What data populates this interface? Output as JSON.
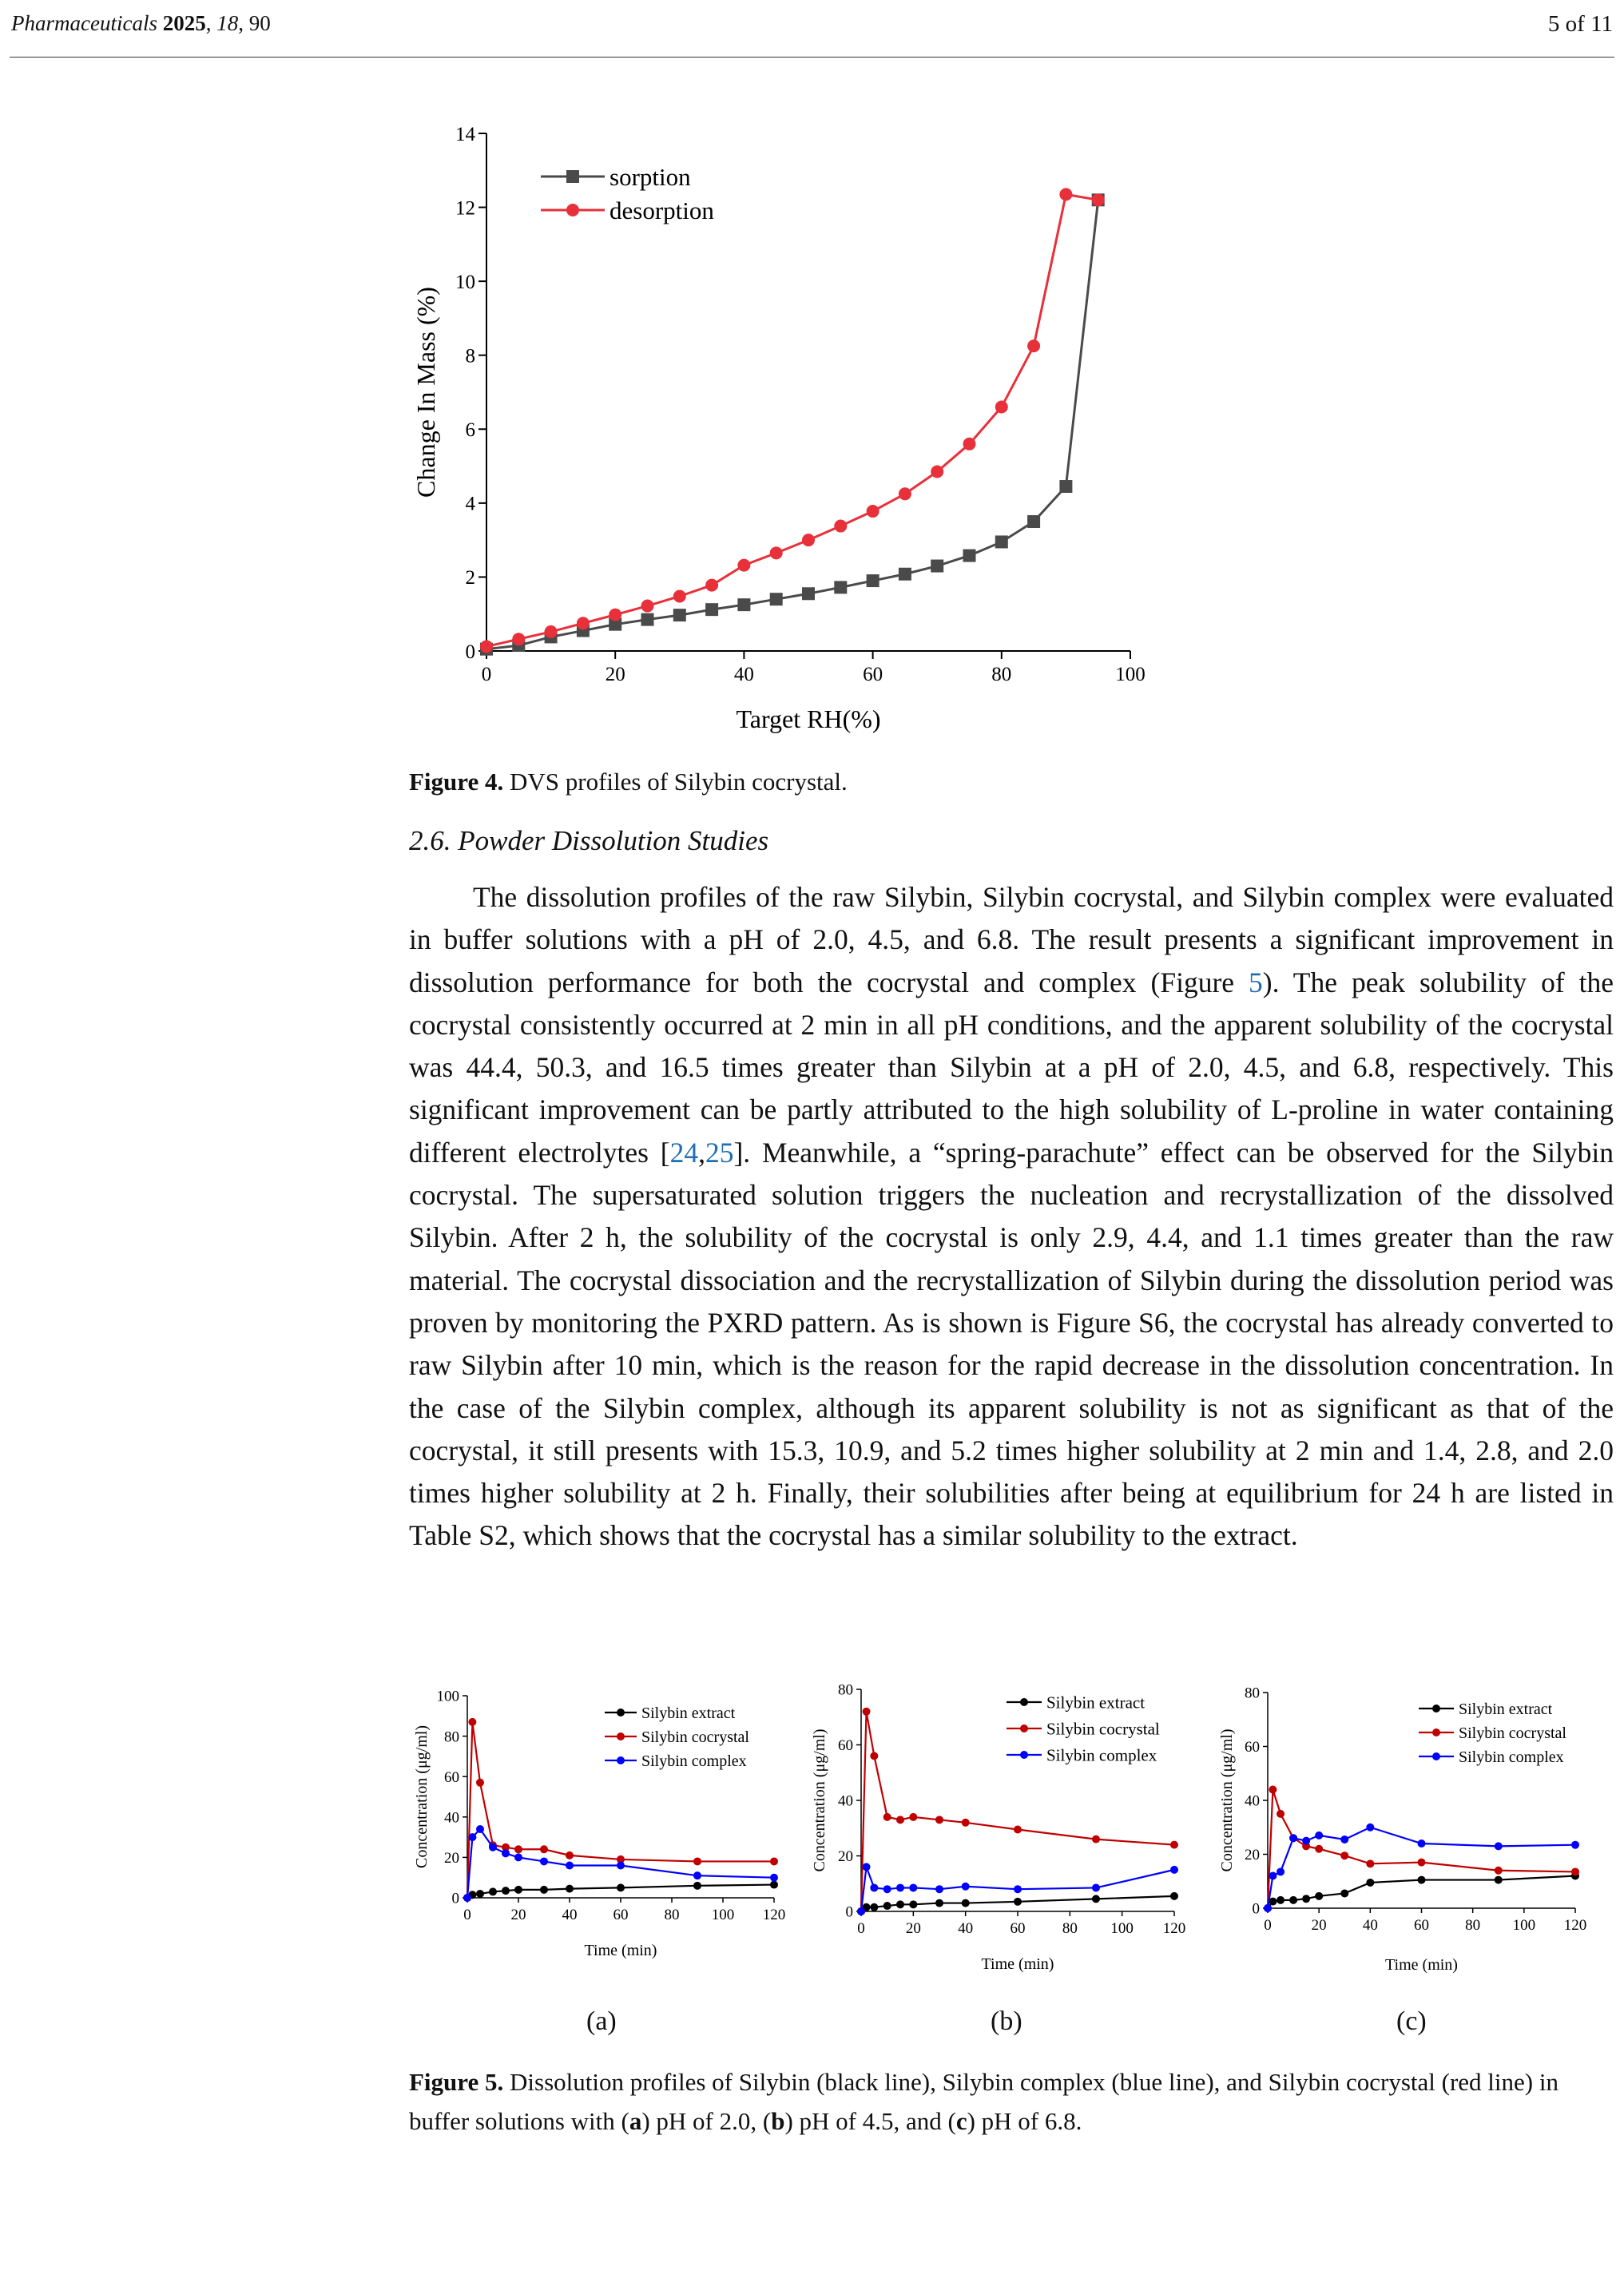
{
  "header": {
    "journal": "Pharmaceuticals",
    "year": "2025",
    "volume": "18",
    "article": "90",
    "page": "5 of 11"
  },
  "figure4": {
    "label": "Figure 4.",
    "caption": "DVS profiles of Silybin cocrystal.",
    "chart_data": {
      "type": "line",
      "title": "",
      "xlabel": "Target RH(%)",
      "ylabel": "Change In Mass (%)",
      "xlim": [
        0,
        100
      ],
      "ylim": [
        0,
        14
      ],
      "xticks": [
        0,
        20,
        40,
        60,
        80,
        100
      ],
      "yticks": [
        0,
        2,
        4,
        6,
        8,
        10,
        12,
        14
      ],
      "legend": "top-left",
      "series": [
        {
          "name": "sorption",
          "color": "#4a4a4a",
          "marker": "square",
          "x": [
            0,
            5,
            10,
            15,
            20,
            25,
            30,
            35,
            40,
            45,
            50,
            55,
            60,
            65,
            70,
            75,
            80,
            85,
            90,
            95
          ],
          "y": [
            0.05,
            0.15,
            0.38,
            0.55,
            0.72,
            0.85,
            0.97,
            1.12,
            1.25,
            1.4,
            1.55,
            1.72,
            1.9,
            2.08,
            2.3,
            2.58,
            2.95,
            3.5,
            4.45,
            12.2
          ]
        },
        {
          "name": "desorption",
          "color": "#e8303a",
          "marker": "circle",
          "x": [
            0,
            5,
            10,
            15,
            20,
            25,
            30,
            35,
            40,
            45,
            50,
            55,
            60,
            65,
            70,
            75,
            80,
            85,
            90,
            95
          ],
          "y": [
            0.12,
            0.32,
            0.52,
            0.75,
            0.98,
            1.22,
            1.48,
            1.78,
            2.32,
            2.65,
            3.0,
            3.38,
            3.78,
            4.25,
            4.85,
            5.6,
            6.6,
            8.25,
            12.35,
            12.2
          ]
        }
      ]
    }
  },
  "section": {
    "number": "2.6.",
    "title": "Powder Dissolution Studies"
  },
  "paragraph": {
    "p1": "The dissolution profiles of the raw Silybin, Silybin cocrystal, and Silybin complex were evaluated in buffer solutions with a pH of 2.0, 4.5, and 6.8. The result presents a significant improvement in dissolution performance for both the cocrystal and complex (Figure ",
    "ref_fig5": "5",
    "p2": "). The peak solubility of the cocrystal consistently occurred at 2 min in all pH conditions, and the apparent solubility of the cocrystal was 44.4, 50.3, and 16.5 times greater than Silybin at a pH of 2.0, 4.5, and 6.8, respectively. This significant improvement can be partly attributed to the high solubility of L-proline in water containing different electrolytes [",
    "ref24": "24",
    "comma": ",",
    "ref25": "25",
    "p3": "]. Meanwhile, a “spring-parachute” effect can be observed for the Silybin cocrystal. The supersaturated solution triggers the nucleation and recrystallization of the dissolved Silybin. After 2 h, the solubility of the cocrystal is only 2.9, 4.4, and 1.1 times greater than the raw material. The cocrystal dissociation and the recrystallization of Silybin during the dissolution period was proven by monitoring the PXRD pattern. As is shown is Figure S6, the cocrystal has already converted to raw Silybin after 10 min, which is the reason for the rapid decrease in the dissolution concentration. In the case of the Silybin complex, although its apparent solubility is not as significant as that of the cocrystal, it still presents with 15.3, 10.9, and 5.2 times higher solubility at 2 min and 1.4, 2.8, and 2.0 times higher solubility at 2 h. Finally, their solubilities after being at equilibrium for 24 h are listed in Table S2, which shows that the cocrystal has a similar solubility to the extract."
  },
  "figure5": {
    "label": "Figure 5.",
    "caption_parts": {
      "c1": "Dissolution profiles of Silybin (black line), Silybin complex (blue line), and Silybin cocrystal (red line) in buffer solutions with (",
      "a": "a",
      "c2": ") pH of 2.0, (",
      "b": "b",
      "c3": ") pH of 4.5, and (",
      "c": "c",
      "c4": ") pH of 6.8."
    },
    "sublabels": [
      "(a)",
      "(b)",
      "(c)"
    ],
    "chart_data": [
      {
        "type": "line",
        "xlabel": "Time (min)",
        "ylabel": "Concentration (μg/ml)",
        "xlim": [
          0,
          120
        ],
        "ylim": [
          0,
          100
        ],
        "xticks": [
          0,
          20,
          40,
          60,
          80,
          100,
          120
        ],
        "yticks": [
          0,
          20,
          40,
          60,
          80,
          100
        ],
        "legend": "top-right",
        "series": [
          {
            "name": "Silybin extract",
            "color": "#000000",
            "x": [
              0,
              2,
              5,
              10,
              15,
              20,
              30,
              40,
              60,
              90,
              120
            ],
            "y": [
              0,
              1.5,
              2,
              3,
              3.5,
              4,
              4,
              4.5,
              5,
              6,
              6.5
            ]
          },
          {
            "name": "Silybin cocrystal",
            "color": "#c00000",
            "x": [
              0,
              2,
              5,
              10,
              15,
              20,
              30,
              40,
              60,
              90,
              120
            ],
            "y": [
              0,
              87,
              57,
              26,
              25,
              24,
              24,
              21,
              19,
              18,
              18
            ]
          },
          {
            "name": "Silybin complex",
            "color": "#0000ff",
            "x": [
              0,
              2,
              5,
              10,
              15,
              20,
              30,
              40,
              60,
              90,
              120
            ],
            "y": [
              0,
              30,
              34,
              25,
              22,
              20,
              18,
              16,
              16,
              11,
              10
            ]
          }
        ]
      },
      {
        "type": "line",
        "xlabel": "Time (min)",
        "ylabel": "Concentration (μg/ml)",
        "xlim": [
          0,
          120
        ],
        "ylim": [
          0,
          80
        ],
        "xticks": [
          0,
          20,
          40,
          60,
          80,
          100,
          120
        ],
        "yticks": [
          0,
          20,
          40,
          60,
          80
        ],
        "legend": "top-right",
        "series": [
          {
            "name": "Silybin extract",
            "color": "#000000",
            "x": [
              0,
              2,
              5,
              10,
              15,
              20,
              30,
              40,
              60,
              90,
              120
            ],
            "y": [
              0,
              1.5,
              1.5,
              2,
              2.5,
              2.5,
              3,
              3,
              3.5,
              4.5,
              5.5
            ]
          },
          {
            "name": "Silybin cocrystal",
            "color": "#c00000",
            "x": [
              0,
              2,
              5,
              10,
              15,
              20,
              30,
              40,
              60,
              90,
              120
            ],
            "y": [
              0,
              72,
              56,
              34,
              33,
              34,
              33,
              32,
              29.5,
              26,
              24
            ]
          },
          {
            "name": "Silybin complex",
            "color": "#0000ff",
            "x": [
              0,
              2,
              5,
              10,
              15,
              20,
              30,
              40,
              60,
              90,
              120
            ],
            "y": [
              0,
              16,
              8.5,
              8,
              8.5,
              8.5,
              8,
              9,
              8,
              8.5,
              15
            ]
          }
        ]
      },
      {
        "type": "line",
        "xlabel": "Time (min)",
        "ylabel": "Concentration (μg/ml)",
        "xlim": [
          0,
          120
        ],
        "ylim": [
          0,
          80
        ],
        "xticks": [
          0,
          20,
          40,
          60,
          80,
          100,
          120
        ],
        "yticks": [
          0,
          20,
          40,
          60,
          80
        ],
        "legend": "top-right",
        "series": [
          {
            "name": "Silybin extract",
            "color": "#000000",
            "x": [
              0,
              2,
              5,
              10,
              15,
              20,
              30,
              40,
              60,
              90,
              120
            ],
            "y": [
              0,
              2.5,
              3,
              3,
              3.5,
              4.5,
              5.5,
              9.5,
              10.5,
              10.5,
              12
            ]
          },
          {
            "name": "Silybin cocrystal",
            "color": "#c00000",
            "x": [
              0,
              2,
              5,
              10,
              15,
              20,
              30,
              40,
              60,
              90,
              120
            ],
            "y": [
              0,
              44,
              35,
              26,
              23,
              22,
              19.5,
              16.5,
              17,
              14,
              13.5
            ]
          },
          {
            "name": "Silybin complex",
            "color": "#0000ff",
            "x": [
              0,
              2,
              5,
              10,
              15,
              20,
              30,
              40,
              60,
              90,
              120
            ],
            "y": [
              0,
              12,
              13.5,
              26,
              25,
              27,
              25.5,
              30,
              24,
              23,
              23.5
            ]
          }
        ]
      }
    ]
  }
}
